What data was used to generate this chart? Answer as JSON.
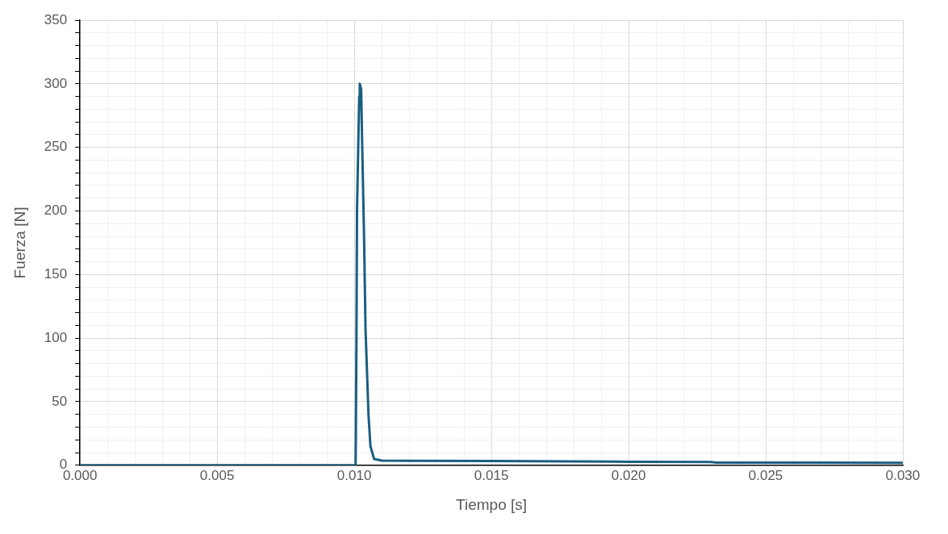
{
  "chart_data": {
    "type": "line",
    "xlabel": "Tiempo [s]",
    "ylabel": "Fuerza [N]",
    "xlim": [
      0,
      0.03
    ],
    "ylim": [
      0,
      350
    ],
    "xticks": [
      {
        "value": 0,
        "label": "0.000"
      },
      {
        "value": 0.001,
        "label": null
      },
      {
        "value": 0.002,
        "label": null
      },
      {
        "value": 0.003,
        "label": null
      },
      {
        "value": 0.004,
        "label": null
      },
      {
        "value": 0.005,
        "label": "0.005"
      },
      {
        "value": 0.006,
        "label": null
      },
      {
        "value": 0.007,
        "label": null
      },
      {
        "value": 0.008,
        "label": null
      },
      {
        "value": 0.009,
        "label": null
      },
      {
        "value": 0.01,
        "label": "0.010"
      },
      {
        "value": 0.011,
        "label": null
      },
      {
        "value": 0.012,
        "label": null
      },
      {
        "value": 0.013,
        "label": null
      },
      {
        "value": 0.014,
        "label": null
      },
      {
        "value": 0.015,
        "label": "0.015"
      },
      {
        "value": 0.016,
        "label": null
      },
      {
        "value": 0.017,
        "label": null
      },
      {
        "value": 0.018,
        "label": null
      },
      {
        "value": 0.019,
        "label": null
      },
      {
        "value": 0.02,
        "label": "0.020"
      },
      {
        "value": 0.021,
        "label": null
      },
      {
        "value": 0.022,
        "label": null
      },
      {
        "value": 0.023,
        "label": null
      },
      {
        "value": 0.024,
        "label": null
      },
      {
        "value": 0.025,
        "label": "0.025"
      },
      {
        "value": 0.026,
        "label": null
      },
      {
        "value": 0.027,
        "label": null
      },
      {
        "value": 0.028,
        "label": null
      },
      {
        "value": 0.029,
        "label": null
      },
      {
        "value": 0.03,
        "label": "0.030"
      }
    ],
    "yticks": [
      0,
      {
        "value": 10,
        "label": null
      },
      {
        "value": 20,
        "label": null
      },
      {
        "value": 30,
        "label": null
      },
      {
        "value": 40,
        "label": null
      },
      50,
      {
        "value": 60,
        "label": null
      },
      {
        "value": 70,
        "label": null
      },
      {
        "value": 80,
        "label": null
      },
      {
        "value": 90,
        "label": null
      },
      100,
      {
        "value": 110,
        "label": null
      },
      {
        "value": 120,
        "label": null
      },
      {
        "value": 130,
        "label": null
      },
      {
        "value": 140,
        "label": null
      },
      150,
      {
        "value": 160,
        "label": null
      },
      {
        "value": 170,
        "label": null
      },
      {
        "value": 180,
        "label": null
      },
      {
        "value": 190,
        "label": null
      },
      200,
      {
        "value": 210,
        "label": null
      },
      {
        "value": 220,
        "label": null
      },
      {
        "value": 230,
        "label": null
      },
      {
        "value": 240,
        "label": null
      },
      250,
      {
        "value": 260,
        "label": null
      },
      {
        "value": 270,
        "label": null
      },
      {
        "value": 280,
        "label": null
      },
      {
        "value": 290,
        "label": null
      },
      300,
      {
        "value": 310,
        "label": null
      },
      {
        "value": 320,
        "label": null
      },
      {
        "value": 330,
        "label": null
      },
      {
        "value": 340,
        "label": null
      },
      350
    ],
    "grid": true,
    "legend": false,
    "marker": "none",
    "line_style": "solid",
    "x": [
      0,
      0.005,
      0.01,
      0.01005,
      0.01008,
      0.0101,
      0.01018,
      0.0102,
      0.01025,
      0.0103,
      0.01036,
      0.01041,
      0.01052,
      0.01059,
      0.01072,
      0.011,
      0.015,
      0.02,
      0.023,
      0.0232,
      0.03
    ],
    "series": [
      {
        "color": "#1b5e80",
        "values": [
          0,
          0,
          0,
          0,
          100,
          200,
          290,
          300,
          296,
          240,
          176,
          107,
          39,
          15,
          5,
          3.7,
          3.3,
          2.8,
          2.6,
          2.1,
          2.0
        ]
      }
    ]
  }
}
